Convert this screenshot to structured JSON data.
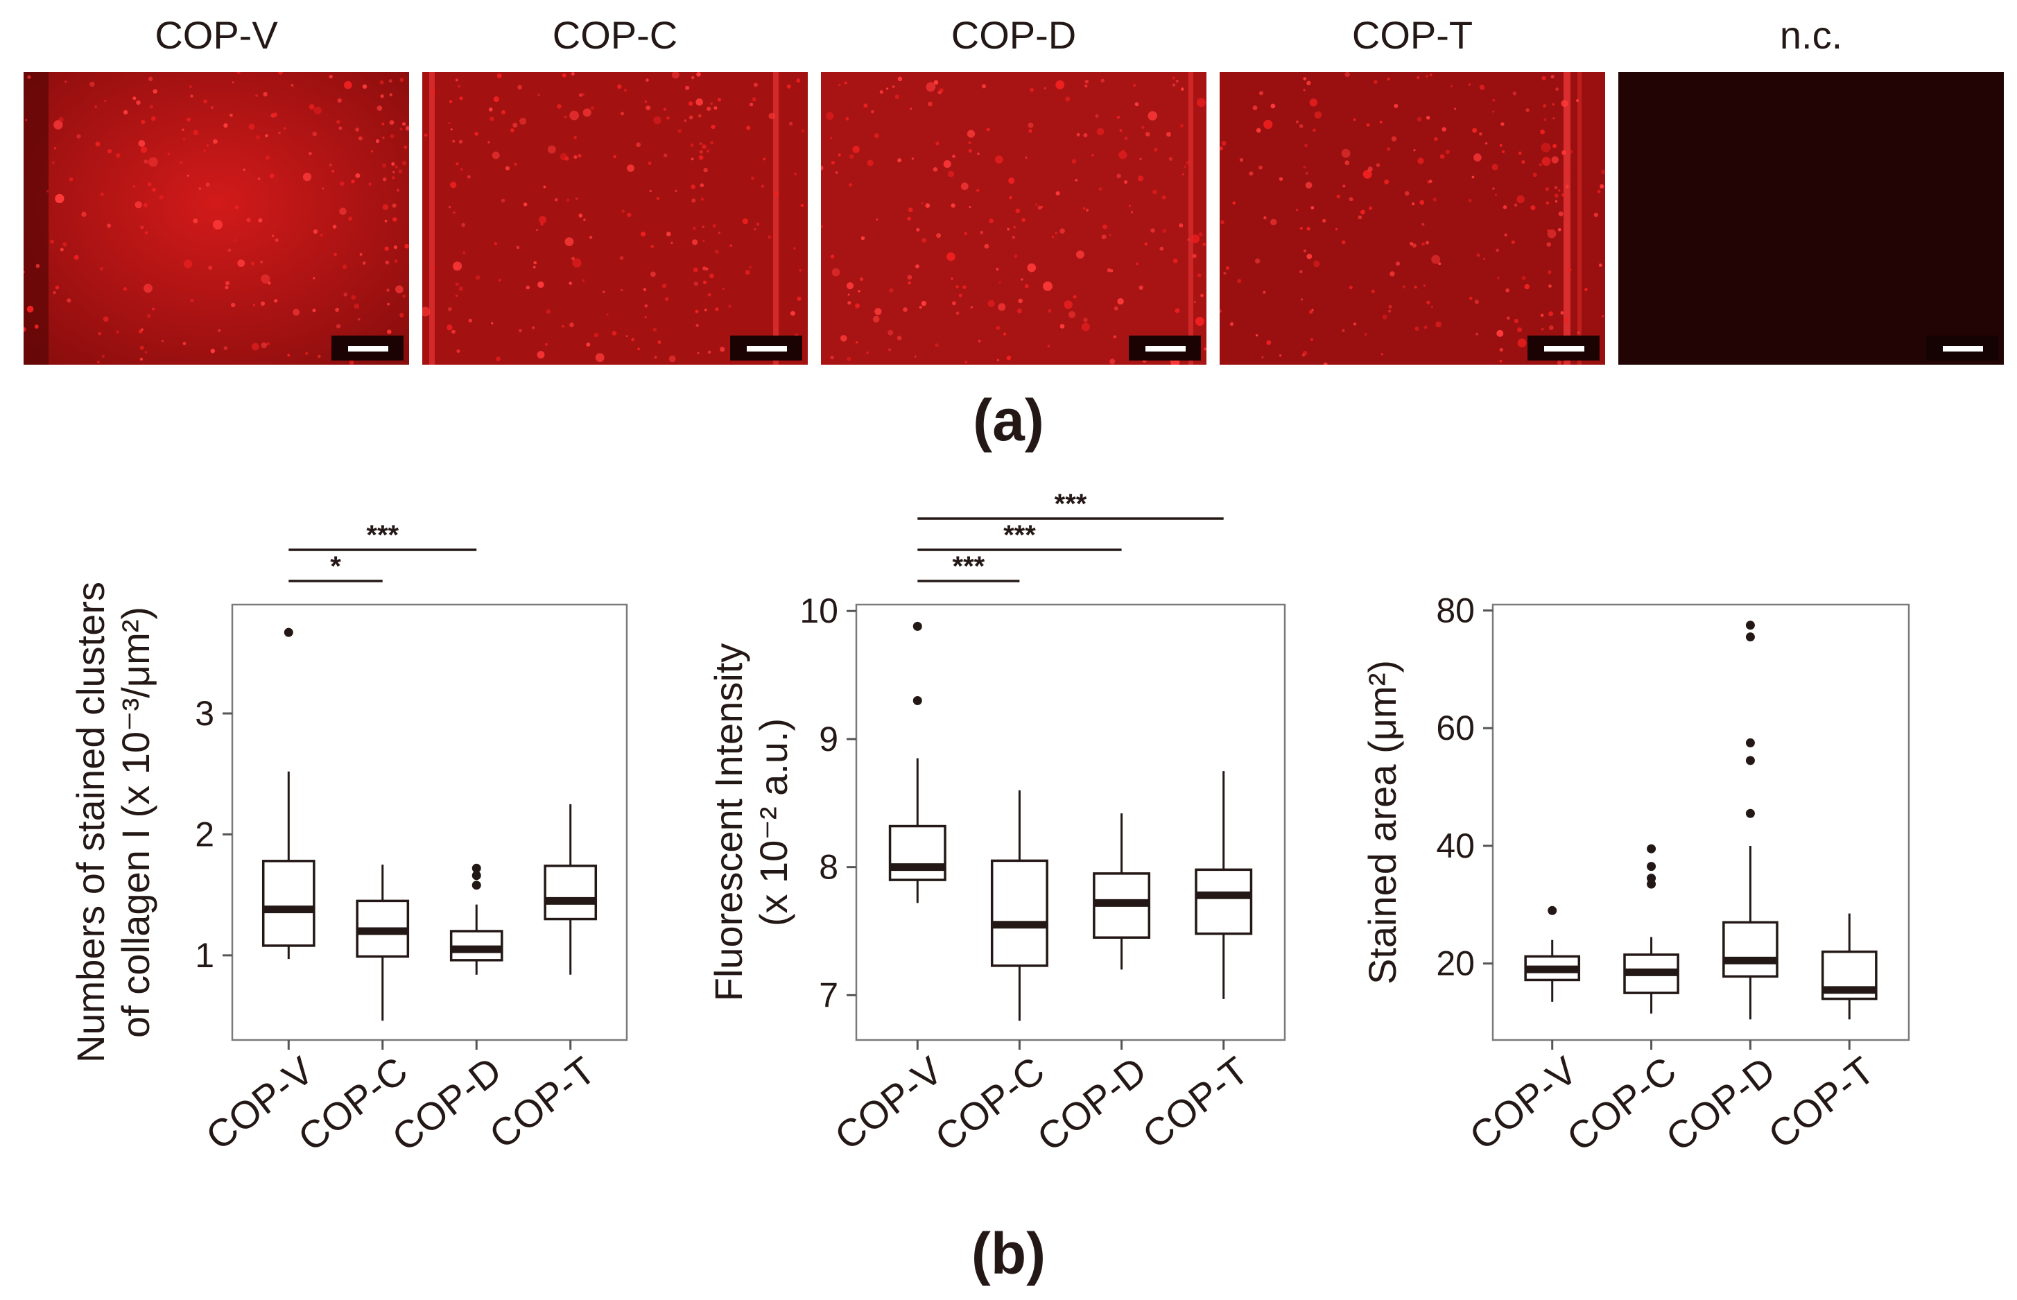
{
  "panel_a": {
    "labels": [
      "COP-V",
      "COP-C",
      "COP-D",
      "COP-T",
      "n.c."
    ],
    "caption": "(a)"
  },
  "panel_b_caption": "(b)",
  "colors": {
    "stain": "#d61818",
    "dark": "#1c0303",
    "ink": "#231815"
  },
  "chart_data": [
    {
      "type": "box",
      "title": "",
      "ylabel_line1": "Numbers of stained clusters",
      "ylabel_line2": "of collagen I (x 10⁻³/μm²)",
      "categories": [
        "COP-V",
        "COP-C",
        "COP-D",
        "COP-T"
      ],
      "ylim": [
        0.3,
        3.9
      ],
      "yticks": [
        1,
        2,
        3
      ],
      "boxes": [
        {
          "min": 0.97,
          "q1": 1.08,
          "median": 1.38,
          "q3": 1.78,
          "max": 2.52,
          "outliers": [
            3.67
          ]
        },
        {
          "min": 0.46,
          "q1": 0.99,
          "median": 1.2,
          "q3": 1.45,
          "max": 1.75,
          "outliers": []
        },
        {
          "min": 0.84,
          "q1": 0.96,
          "median": 1.05,
          "q3": 1.2,
          "max": 1.42,
          "outliers": [
            1.58,
            1.66,
            1.72
          ]
        },
        {
          "min": 0.84,
          "q1": 1.3,
          "median": 1.45,
          "q3": 1.74,
          "max": 2.25,
          "outliers": []
        }
      ],
      "significance": [
        {
          "from": 0,
          "to": 1,
          "label": "*"
        },
        {
          "from": 0,
          "to": 2,
          "label": "***"
        }
      ]
    },
    {
      "type": "box",
      "title": "",
      "ylabel_line1": "Fluorescent Intensity",
      "ylabel_line2": "(x 10⁻² a.u.)",
      "categories": [
        "COP-V",
        "COP-C",
        "COP-D",
        "COP-T"
      ],
      "ylim": [
        6.65,
        10.05
      ],
      "yticks": [
        7,
        8,
        9,
        10
      ],
      "boxes": [
        {
          "min": 7.72,
          "q1": 7.9,
          "median": 8.0,
          "q3": 8.32,
          "max": 8.85,
          "outliers": [
            9.3,
            9.88
          ]
        },
        {
          "min": 6.8,
          "q1": 7.23,
          "median": 7.55,
          "q3": 8.05,
          "max": 8.6,
          "outliers": []
        },
        {
          "min": 7.2,
          "q1": 7.45,
          "median": 7.72,
          "q3": 7.95,
          "max": 8.42,
          "outliers": []
        },
        {
          "min": 6.97,
          "q1": 7.48,
          "median": 7.78,
          "q3": 7.98,
          "max": 8.75,
          "outliers": []
        }
      ],
      "significance": [
        {
          "from": 0,
          "to": 1,
          "label": "***"
        },
        {
          "from": 0,
          "to": 2,
          "label": "***"
        },
        {
          "from": 0,
          "to": 3,
          "label": "***"
        }
      ]
    },
    {
      "type": "box",
      "title": "",
      "ylabel_line1": "Stained area (μm²)",
      "ylabel_line2": "",
      "categories": [
        "COP-V",
        "COP-C",
        "COP-D",
        "COP-T"
      ],
      "ylim": [
        7,
        81
      ],
      "yticks": [
        20,
        40,
        60,
        80
      ],
      "boxes": [
        {
          "min": 13.5,
          "q1": 17.2,
          "median": 19.0,
          "q3": 21.2,
          "max": 24.0,
          "outliers": [
            29.0
          ]
        },
        {
          "min": 11.5,
          "q1": 15.0,
          "median": 18.5,
          "q3": 21.5,
          "max": 24.5,
          "outliers": [
            33.5,
            34.5,
            36.5,
            39.5
          ]
        },
        {
          "min": 10.5,
          "q1": 17.8,
          "median": 20.5,
          "q3": 27.0,
          "max": 40.0,
          "outliers": [
            45.5,
            54.5,
            57.5,
            75.5,
            77.5
          ]
        },
        {
          "min": 10.5,
          "q1": 14.0,
          "median": 15.5,
          "q3": 22.0,
          "max": 28.5,
          "outliers": []
        }
      ],
      "significance": []
    }
  ]
}
